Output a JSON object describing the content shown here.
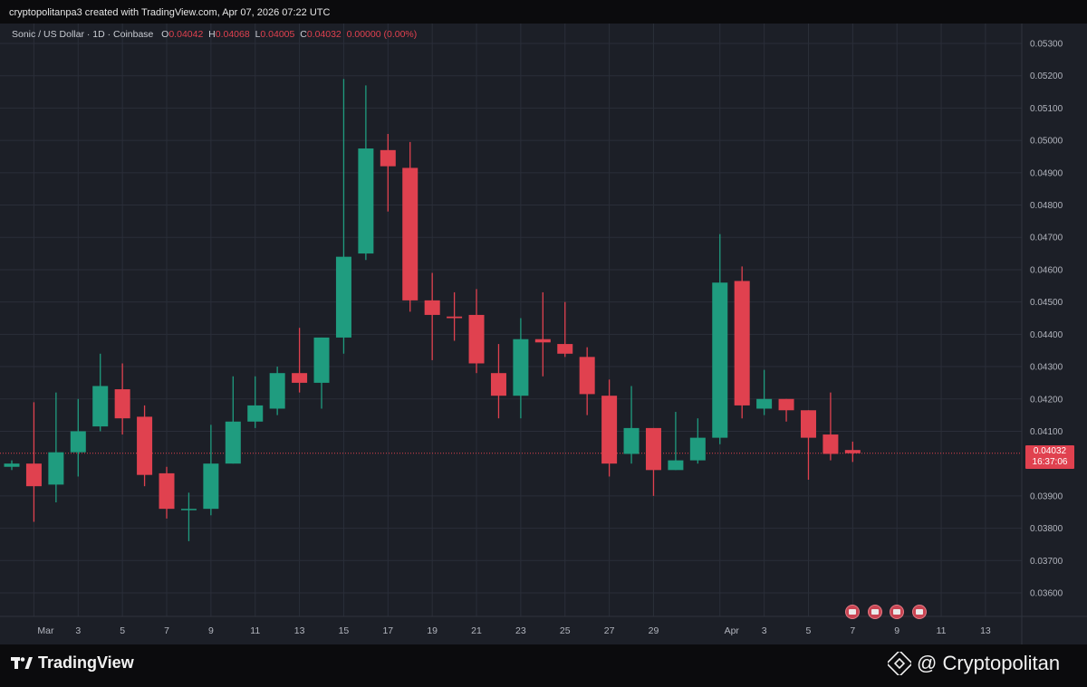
{
  "header": {
    "created_text": "cryptopolitanpa3 created with TradingView.com, Apr 07, 2026 07:22 UTC"
  },
  "legend": {
    "symbol": "Sonic / US Dollar · 1D · Coinbase",
    "o_label": "O",
    "o_value": "0.04042",
    "h_label": "H",
    "h_value": "0.04068",
    "l_label": "L",
    "l_value": "0.04005",
    "c_label": "C",
    "c_value": "0.04032",
    "change": "0.00000 (0.00%)"
  },
  "price_tag": {
    "price": "0.04032",
    "countdown": "16:37:06"
  },
  "footer": {
    "tv_logo": "TradingView",
    "brand": "@ Cryptopolitan"
  },
  "colors": {
    "up": "#1f9c7f",
    "down": "#e0414f",
    "background": "#1c1f27",
    "grid": "#2a2e39",
    "axis_text": "#b2b5be"
  },
  "icons": {
    "tv_logo": "tradingview-logo-icon",
    "brand_logo": "binance-diamond-icon",
    "event_flag": "us-flag-icon"
  },
  "chart_data": {
    "type": "candlestick",
    "grid": true,
    "y_axis_position": "right",
    "ylim": [
      0.0353,
      0.0537
    ],
    "y_ticks": [
      "0.03600",
      "0.03700",
      "0.03800",
      "0.03900",
      "0.04100",
      "0.04200",
      "0.04300",
      "0.04400",
      "0.04500",
      "0.04600",
      "0.04700",
      "0.04800",
      "0.04900",
      "0.05000",
      "0.05100",
      "0.05200",
      "0.05300"
    ],
    "x_ticks": [
      {
        "label": "Mar",
        "date": "2026-03-01"
      },
      {
        "label": "3",
        "date": "2026-03-03"
      },
      {
        "label": "5",
        "date": "2026-03-05"
      },
      {
        "label": "7",
        "date": "2026-03-07"
      },
      {
        "label": "9",
        "date": "2026-03-09"
      },
      {
        "label": "11",
        "date": "2026-03-11"
      },
      {
        "label": "13",
        "date": "2026-03-13"
      },
      {
        "label": "15",
        "date": "2026-03-15"
      },
      {
        "label": "17",
        "date": "2026-03-17"
      },
      {
        "label": "19",
        "date": "2026-03-19"
      },
      {
        "label": "21",
        "date": "2026-03-21"
      },
      {
        "label": "23",
        "date": "2026-03-23"
      },
      {
        "label": "25",
        "date": "2026-03-25"
      },
      {
        "label": "27",
        "date": "2026-03-27"
      },
      {
        "label": "29",
        "date": "2026-03-29"
      },
      {
        "label": "Apr",
        "date": "2026-04-01"
      },
      {
        "label": "3",
        "date": "2026-04-03"
      },
      {
        "label": "5",
        "date": "2026-04-05"
      },
      {
        "label": "7",
        "date": "2026-04-07"
      },
      {
        "label": "9",
        "date": "2026-04-09"
      },
      {
        "label": "11",
        "date": "2026-04-11"
      },
      {
        "label": "13",
        "date": "2026-04-13"
      }
    ],
    "last_price": 0.04032,
    "flag_dates": [
      "2026-04-07",
      "2026-04-08",
      "2026-04-09",
      "2026-04-10"
    ],
    "candles": [
      {
        "date": "2026-02-28",
        "o": 0.0399,
        "h": 0.0401,
        "l": 0.0398,
        "c": 0.04
      },
      {
        "date": "2026-03-01",
        "o": 0.04,
        "h": 0.0419,
        "l": 0.0382,
        "c": 0.0393
      },
      {
        "date": "2026-03-02",
        "o": 0.03935,
        "h": 0.0422,
        "l": 0.0388,
        "c": 0.04035
      },
      {
        "date": "2026-03-03",
        "o": 0.04035,
        "h": 0.042,
        "l": 0.0396,
        "c": 0.041
      },
      {
        "date": "2026-03-04",
        "o": 0.04115,
        "h": 0.0434,
        "l": 0.041,
        "c": 0.0424
      },
      {
        "date": "2026-03-05",
        "o": 0.0423,
        "h": 0.0431,
        "l": 0.0409,
        "c": 0.0414
      },
      {
        "date": "2026-03-06",
        "o": 0.04145,
        "h": 0.0418,
        "l": 0.0393,
        "c": 0.03965
      },
      {
        "date": "2026-03-07",
        "o": 0.0397,
        "h": 0.0399,
        "l": 0.0383,
        "c": 0.0386
      },
      {
        "date": "2026-03-08",
        "o": 0.0386,
        "h": 0.0391,
        "l": 0.0376,
        "c": 0.0386
      },
      {
        "date": "2026-03-09",
        "o": 0.0386,
        "h": 0.0412,
        "l": 0.0384,
        "c": 0.04
      },
      {
        "date": "2026-03-10",
        "o": 0.04,
        "h": 0.0427,
        "l": 0.04,
        "c": 0.0413
      },
      {
        "date": "2026-03-11",
        "o": 0.0413,
        "h": 0.0427,
        "l": 0.0411,
        "c": 0.0418
      },
      {
        "date": "2026-03-12",
        "o": 0.0417,
        "h": 0.043,
        "l": 0.0415,
        "c": 0.0428
      },
      {
        "date": "2026-03-13",
        "o": 0.0428,
        "h": 0.0442,
        "l": 0.0422,
        "c": 0.0425
      },
      {
        "date": "2026-03-14",
        "o": 0.0425,
        "h": 0.0439,
        "l": 0.0417,
        "c": 0.0439
      },
      {
        "date": "2026-03-15",
        "o": 0.0439,
        "h": 0.0519,
        "l": 0.0434,
        "c": 0.0464
      },
      {
        "date": "2026-03-16",
        "o": 0.0465,
        "h": 0.0517,
        "l": 0.0463,
        "c": 0.04975
      },
      {
        "date": "2026-03-17",
        "o": 0.0497,
        "h": 0.0502,
        "l": 0.0478,
        "c": 0.0492
      },
      {
        "date": "2026-03-18",
        "o": 0.04915,
        "h": 0.04995,
        "l": 0.0447,
        "c": 0.04505
      },
      {
        "date": "2026-03-19",
        "o": 0.04505,
        "h": 0.0459,
        "l": 0.0432,
        "c": 0.0446
      },
      {
        "date": "2026-03-20",
        "o": 0.04455,
        "h": 0.0453,
        "l": 0.0438,
        "c": 0.0445
      },
      {
        "date": "2026-03-21",
        "o": 0.0446,
        "h": 0.0454,
        "l": 0.0428,
        "c": 0.0431
      },
      {
        "date": "2026-03-22",
        "o": 0.0428,
        "h": 0.0437,
        "l": 0.0414,
        "c": 0.0421
      },
      {
        "date": "2026-03-23",
        "o": 0.0421,
        "h": 0.0445,
        "l": 0.0414,
        "c": 0.04385
      },
      {
        "date": "2026-03-24",
        "o": 0.04385,
        "h": 0.0453,
        "l": 0.0427,
        "c": 0.04375
      },
      {
        "date": "2026-03-25",
        "o": 0.0437,
        "h": 0.045,
        "l": 0.0433,
        "c": 0.0434
      },
      {
        "date": "2026-03-26",
        "o": 0.0433,
        "h": 0.0436,
        "l": 0.0415,
        "c": 0.04215
      },
      {
        "date": "2026-03-27",
        "o": 0.0421,
        "h": 0.0426,
        "l": 0.0396,
        "c": 0.04
      },
      {
        "date": "2026-03-28",
        "o": 0.0403,
        "h": 0.0424,
        "l": 0.04,
        "c": 0.0411
      },
      {
        "date": "2026-03-29",
        "o": 0.0411,
        "h": 0.0411,
        "l": 0.039,
        "c": 0.0398
      },
      {
        "date": "2026-03-30",
        "o": 0.0398,
        "h": 0.0416,
        "l": 0.0398,
        "c": 0.0401
      },
      {
        "date": "2026-03-31",
        "o": 0.0401,
        "h": 0.0414,
        "l": 0.04,
        "c": 0.0408
      },
      {
        "date": "2026-04-01",
        "o": 0.0408,
        "h": 0.0471,
        "l": 0.0406,
        "c": 0.0456
      },
      {
        "date": "2026-04-02",
        "o": 0.04565,
        "h": 0.0461,
        "l": 0.0414,
        "c": 0.0418
      },
      {
        "date": "2026-04-03",
        "o": 0.0417,
        "h": 0.0429,
        "l": 0.0415,
        "c": 0.042
      },
      {
        "date": "2026-04-04",
        "o": 0.042,
        "h": 0.042,
        "l": 0.0413,
        "c": 0.04165
      },
      {
        "date": "2026-04-05",
        "o": 0.04165,
        "h": 0.04165,
        "l": 0.0395,
        "c": 0.0408
      },
      {
        "date": "2026-04-06",
        "o": 0.0409,
        "h": 0.0422,
        "l": 0.0401,
        "c": 0.0403
      },
      {
        "date": "2026-04-07",
        "o": 0.04042,
        "h": 0.04068,
        "l": 0.04005,
        "c": 0.04032
      }
    ]
  }
}
